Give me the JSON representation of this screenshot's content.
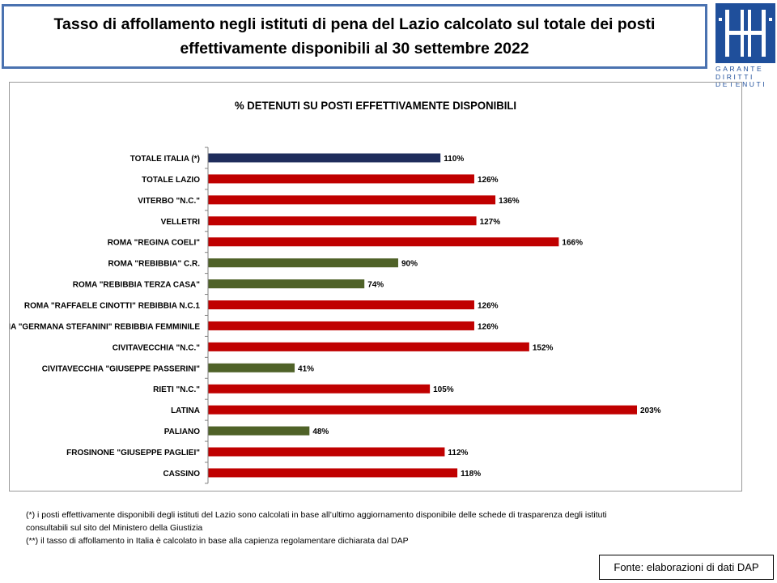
{
  "header": {
    "title_line1": "Tasso di affollamento negli istituti di pena del Lazio calcolato sul totale dei posti",
    "title_line2": "effettivamente disponibili al 30 settembre  2022"
  },
  "logo": {
    "line1": "GARANTE",
    "line2": "DIRITTI",
    "line3": "DETENUTI",
    "color": "#1f4f9b"
  },
  "chart_data": {
    "type": "bar",
    "orientation": "horizontal",
    "title": "% DETENUTI SU POSTI EFFETTIVAMENTE DISPONIBILI",
    "categories": [
      "TOTALE ITALIA (*)",
      "TOTALE LAZIO",
      "VITERBO \"N.C.\"",
      "VELLETRI",
      "ROMA \"REGINA COELI\"",
      "ROMA \"REBIBBIA\" C.R.",
      "ROMA \"REBIBBIA TERZA CASA\"",
      "ROMA \"RAFFAELE CINOTTI\" REBIBBIA N.C.1",
      "ROMA \"GERMANA STEFANINI\" REBIBBIA FEMMINILE",
      "CIVITAVECCHIA \"N.C.\"",
      "CIVITAVECCHIA \"GIUSEPPE PASSERINI\"",
      "RIETI \"N.C.\"",
      "LATINA",
      "PALIANO",
      "FROSINONE \"GIUSEPPE PAGLIEI\"",
      "CASSINO"
    ],
    "values": [
      110,
      126,
      136,
      127,
      166,
      90,
      74,
      126,
      126,
      152,
      41,
      105,
      203,
      48,
      112,
      118
    ],
    "value_labels": [
      "110%",
      "126%",
      "136%",
      "127%",
      "166%",
      "90%",
      "74%",
      "126%",
      "126%",
      "152%",
      "41%",
      "105%",
      "203%",
      "48%",
      "112%",
      "118%"
    ],
    "bar_groups": [
      "italy",
      "over",
      "over",
      "over",
      "over",
      "under",
      "under",
      "over",
      "over",
      "over",
      "under",
      "over",
      "over",
      "under",
      "over",
      "over"
    ],
    "colors": {
      "italy": "#1f2d5c",
      "over": "#c00000",
      "under": "#4f6228"
    },
    "xlim": [
      0,
      210
    ],
    "grid": false,
    "legend": "none"
  },
  "footnotes": {
    "note1": "(*) i posti effettivamente disponibili  degli istituti del Lazio sono calcolati in base all’ultimo aggiornamento disponibile  delle schede  di trasparenza degli istituti",
    "note2": "consultabili  sul sito del Ministero della Giustizia",
    "note3": "(**) il tasso di affollamento  in Italia è calcolato in base alla capienza regolamentare dichiarata dal DAP"
  },
  "source": "Fonte: elaborazioni di dati DAP"
}
